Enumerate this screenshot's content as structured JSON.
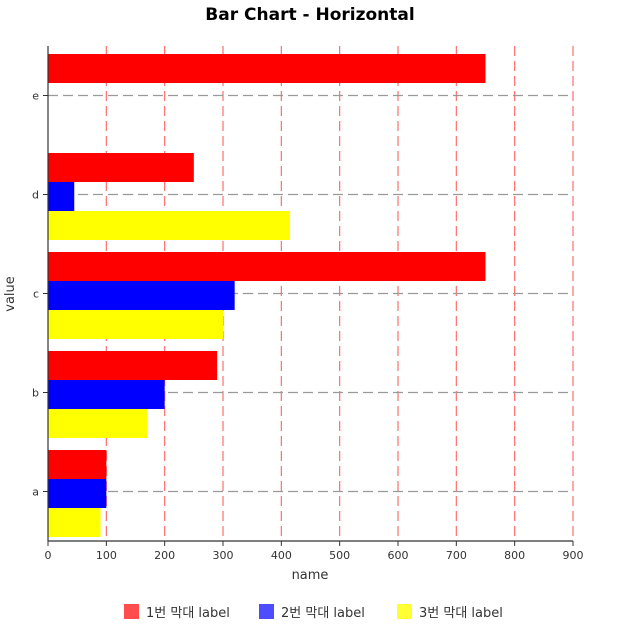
{
  "chart_data": {
    "type": "bar",
    "orientation": "horizontal",
    "title": "Bar Chart - Horizontal",
    "xlabel": "name",
    "ylabel": "value",
    "xlim": [
      0,
      900
    ],
    "x_ticks": [
      0,
      100,
      200,
      300,
      400,
      500,
      600,
      700,
      800,
      900
    ],
    "categories": [
      "a",
      "b",
      "c",
      "d",
      "e"
    ],
    "series": [
      {
        "name": "1번 막대 label",
        "color": "#ff0000",
        "legend_color": "#ff4d4d",
        "values": [
          100,
          290,
          750,
          250,
          750
        ]
      },
      {
        "name": "2번 막대 label",
        "color": "#0000ff",
        "legend_color": "#4d4dff",
        "values": [
          100,
          200,
          320,
          45,
          null
        ]
      },
      {
        "name": "3번 막대 label",
        "color": "#ffff00",
        "legend_color": "#ffff33",
        "values": [
          90,
          170,
          300,
          415,
          null
        ]
      }
    ],
    "grid": {
      "vertical": true,
      "vertical_color": "#ff6e6e",
      "horizontal": true,
      "horizontal_color": "#999999"
    },
    "legend_position": "bottom"
  }
}
